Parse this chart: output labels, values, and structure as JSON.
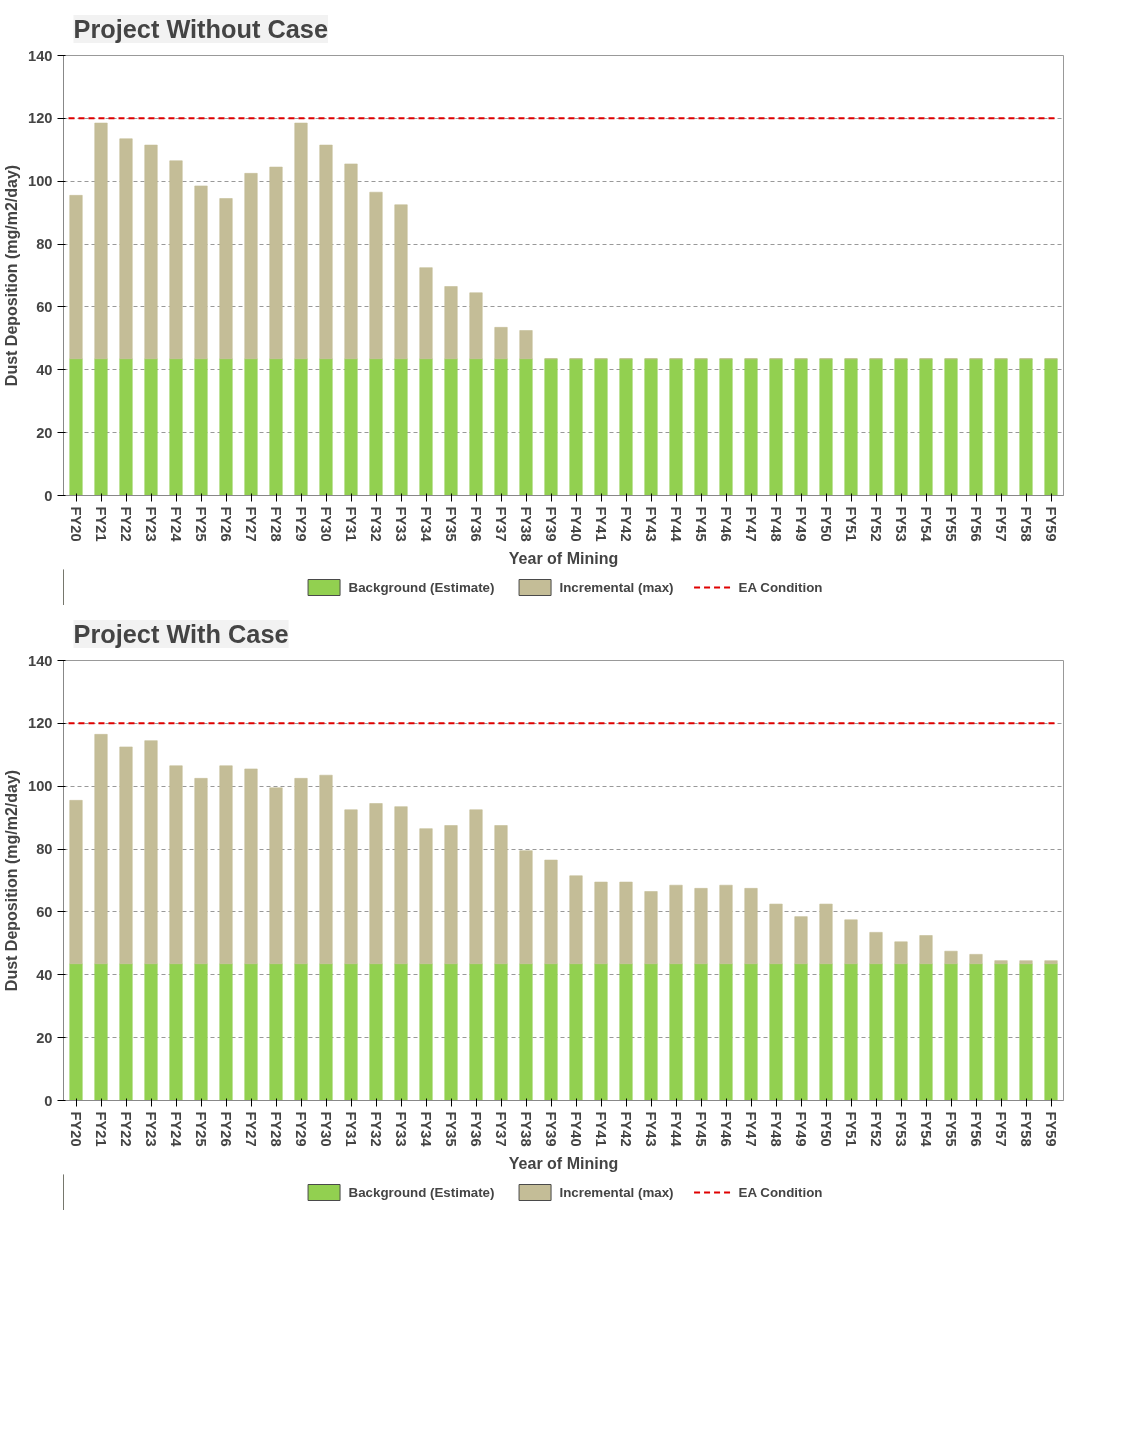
{
  "chart_data": [
    {
      "type": "bar",
      "title": "Project Without Case",
      "xlabel": "Year of Mining",
      "ylabel": "Dust Deposition (mg/m2/day)",
      "categories": [
        "FY20",
        "FY21",
        "FY22",
        "FY23",
        "FY24",
        "FY25",
        "FY26",
        "FY27",
        "FY28",
        "FY29",
        "FY30",
        "FY31",
        "FY32",
        "FY33",
        "FY34",
        "FY35",
        "FY36",
        "FY37",
        "FY38",
        "FY39",
        "FY40",
        "FY41",
        "FY42",
        "FY43",
        "FY44",
        "FY45",
        "FY46",
        "FY47",
        "FY48",
        "FY49",
        "FY50",
        "FY51",
        "FY52",
        "FY53",
        "FY54",
        "FY55",
        "FY56",
        "FY57",
        "FY58",
        "FY59"
      ],
      "stacked": true,
      "series": [
        {
          "name": "Background (Estimate)",
          "color": "#92d050",
          "values": [
            43.5,
            43.5,
            43.5,
            43.5,
            43.5,
            43.5,
            43.5,
            43.5,
            43.5,
            43.5,
            43.5,
            43.5,
            43.5,
            43.5,
            43.5,
            43.5,
            43.5,
            43.5,
            43.5,
            43.5,
            43.5,
            43.5,
            43.5,
            43.5,
            43.5,
            43.5,
            43.5,
            43.5,
            43.5,
            43.5,
            43.5,
            43.5,
            43.5,
            43.5,
            43.5,
            43.5,
            43.5,
            43.5,
            43.5,
            43.5
          ]
        },
        {
          "name": "Incremental (max)",
          "color": "#c4bd97",
          "values": [
            52,
            75,
            70,
            68,
            63,
            55,
            51,
            59,
            61,
            75,
            68,
            62,
            53,
            49,
            29,
            23,
            21,
            10,
            9,
            0,
            0,
            0,
            0,
            0,
            0,
            0,
            0,
            0,
            0,
            0,
            0,
            0,
            0,
            0,
            0,
            0,
            0,
            0,
            0,
            0
          ]
        }
      ],
      "ylim": [
        0,
        140
      ],
      "yticks": [
        0,
        20,
        40,
        60,
        80,
        100,
        120,
        140
      ],
      "grid": "y",
      "legend": "bottom",
      "ref_lines": [
        {
          "axis": "y",
          "value": 120,
          "label": "EA Condition",
          "color": "#e00000",
          "line_style": "dashed"
        }
      ]
    },
    {
      "type": "bar",
      "title": "Project With Case",
      "xlabel": "Year of Mining",
      "ylabel": "Dust Deposition (mg/m2/day)",
      "categories": [
        "FY20",
        "FY21",
        "FY22",
        "FY23",
        "FY24",
        "FY25",
        "FY26",
        "FY27",
        "FY28",
        "FY29",
        "FY30",
        "FY31",
        "FY32",
        "FY33",
        "FY34",
        "FY35",
        "FY36",
        "FY37",
        "FY38",
        "FY39",
        "FY40",
        "FY41",
        "FY42",
        "FY43",
        "FY44",
        "FY45",
        "FY46",
        "FY47",
        "FY48",
        "FY49",
        "FY50",
        "FY51",
        "FY52",
        "FY53",
        "FY54",
        "FY55",
        "FY56",
        "FY57",
        "FY58",
        "FY59"
      ],
      "stacked": true,
      "series": [
        {
          "name": "Background (Estimate)",
          "color": "#92d050",
          "values": [
            43.5,
            43.5,
            43.5,
            43.5,
            43.5,
            43.5,
            43.5,
            43.5,
            43.5,
            43.5,
            43.5,
            43.5,
            43.5,
            43.5,
            43.5,
            43.5,
            43.5,
            43.5,
            43.5,
            43.5,
            43.5,
            43.5,
            43.5,
            43.5,
            43.5,
            43.5,
            43.5,
            43.5,
            43.5,
            43.5,
            43.5,
            43.5,
            43.5,
            43.5,
            43.5,
            43.5,
            43.5,
            43.5,
            43.5,
            43.5
          ]
        },
        {
          "name": "Incremental (max)",
          "color": "#c4bd97",
          "values": [
            52,
            73,
            69,
            71,
            63,
            59,
            63,
            62,
            56,
            59,
            60,
            49,
            51,
            50,
            43,
            44,
            49,
            44,
            36,
            33,
            28,
            26,
            26,
            23,
            25,
            24,
            25,
            24,
            19,
            15,
            19,
            14,
            10,
            7,
            9,
            4,
            3,
            1,
            1,
            1
          ]
        }
      ],
      "ylim": [
        0,
        140
      ],
      "yticks": [
        0,
        20,
        40,
        60,
        80,
        100,
        120,
        140
      ],
      "grid": "y",
      "legend": "bottom",
      "ref_lines": [
        {
          "axis": "y",
          "value": 120,
          "label": "EA Condition",
          "color": "#e00000",
          "line_style": "dashed"
        }
      ]
    }
  ]
}
